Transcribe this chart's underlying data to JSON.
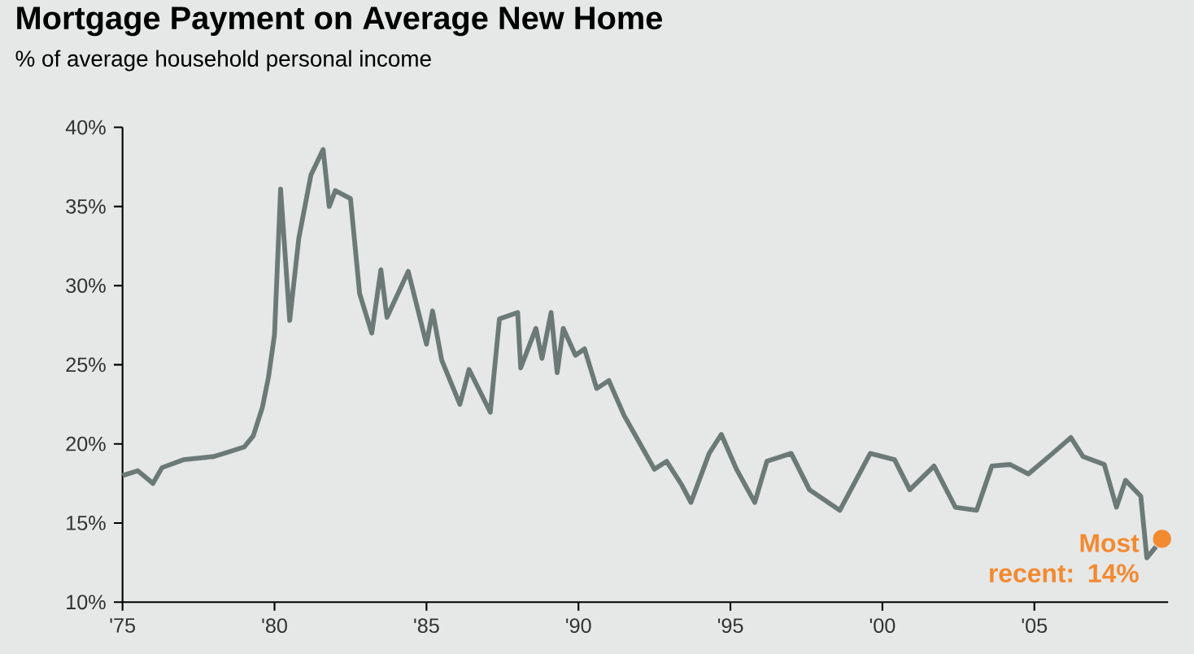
{
  "chart_data": {
    "type": "line",
    "title": "Mortgage Payment on Average New Home",
    "subtitle": "% of average household personal income",
    "xlim": [
      1975,
      2009.4
    ],
    "ylim": [
      10,
      40
    ],
    "xticks": [
      {
        "value": 1975,
        "label": "'75"
      },
      {
        "value": 1980,
        "label": "'80"
      },
      {
        "value": 1985,
        "label": "'85"
      },
      {
        "value": 1990,
        "label": "'90"
      },
      {
        "value": 1995,
        "label": "'95"
      },
      {
        "value": 2000,
        "label": "'00"
      },
      {
        "value": 2005,
        "label": "'05"
      }
    ],
    "yticks": [
      {
        "value": 10,
        "label": "10%"
      },
      {
        "value": 15,
        "label": "15%"
      },
      {
        "value": 20,
        "label": "20%"
      },
      {
        "value": 25,
        "label": "25%"
      },
      {
        "value": 30,
        "label": "30%"
      },
      {
        "value": 35,
        "label": "35%"
      },
      {
        "value": 40,
        "label": "40%"
      }
    ],
    "grid": false,
    "series": [
      {
        "color": "#6b7a77",
        "marker": "none",
        "x": [
          1975.0,
          1975.5,
          1976.0,
          1976.3,
          1977.0,
          1978.0,
          1978.5,
          1979.0,
          1979.3,
          1979.6,
          1979.8,
          1980.0,
          1980.2,
          1980.5,
          1980.8,
          1981.2,
          1981.6,
          1981.8,
          1982.0,
          1982.5,
          1982.8,
          1983.2,
          1983.5,
          1983.7,
          1984.4,
          1985.0,
          1985.2,
          1985.5,
          1986.1,
          1986.4,
          1987.1,
          1987.4,
          1988.0,
          1988.1,
          1988.6,
          1988.8,
          1989.1,
          1989.3,
          1989.5,
          1989.9,
          1990.2,
          1990.6,
          1991.0,
          1991.5,
          1992.0,
          1992.5,
          1992.9,
          1993.4,
          1993.7,
          1994.3,
          1994.7,
          1995.2,
          1995.8,
          1996.2,
          1997.0,
          1997.6,
          1998.6,
          1999.6,
          2000.4,
          2000.9,
          2001.7,
          2002.4,
          2003.1,
          2003.6,
          2004.2,
          2004.8,
          2005.6,
          2006.2,
          2006.6,
          2007.3,
          2007.7,
          2008.0,
          2008.5,
          2008.7,
          2009.0
        ],
        "values": [
          18.0,
          18.3,
          17.5,
          18.5,
          19.0,
          19.2,
          19.5,
          19.8,
          20.5,
          22.3,
          24.2,
          26.9,
          36.1,
          27.8,
          33.0,
          37.0,
          38.6,
          35.0,
          36.0,
          35.5,
          29.5,
          27.0,
          31.0,
          28.0,
          30.9,
          26.3,
          28.4,
          25.3,
          22.5,
          24.7,
          22.0,
          27.9,
          28.3,
          24.8,
          27.3,
          25.4,
          28.3,
          24.5,
          27.3,
          25.6,
          26.0,
          23.5,
          24.0,
          21.8,
          20.1,
          18.4,
          18.9,
          17.4,
          16.3,
          19.4,
          20.6,
          18.4,
          16.3,
          18.9,
          19.4,
          17.1,
          15.8,
          19.4,
          19.0,
          17.1,
          18.6,
          16.0,
          15.8,
          18.6,
          18.7,
          18.1,
          19.4,
          20.4,
          19.2,
          18.7,
          16.0,
          17.7,
          16.7,
          12.8,
          13.5
        ]
      },
      {
        "type": "scatter",
        "color": "#f28a30",
        "marker": "circle",
        "x": [
          2009.2
        ],
        "values": [
          14
        ]
      }
    ],
    "annotations": [
      {
        "text": "Most recent: 14%",
        "x": 2009.2,
        "y": 14
      }
    ]
  }
}
